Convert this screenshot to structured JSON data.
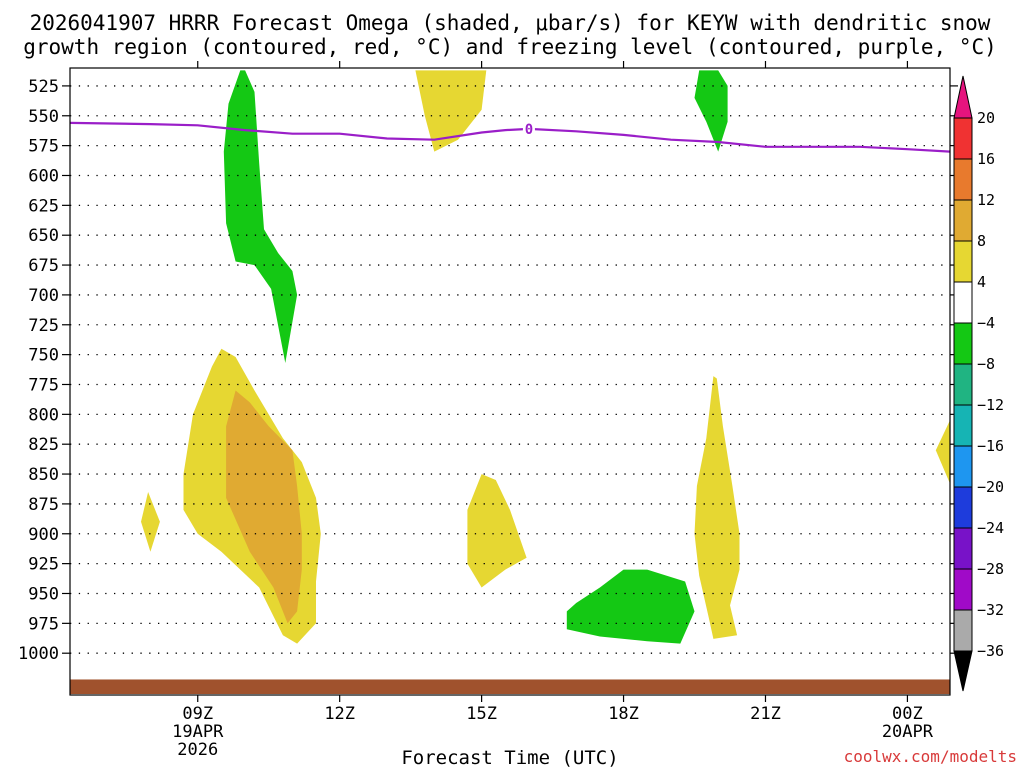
{
  "chart_data": {
    "type": "contour-timeheight",
    "title_line1": "2026041907 HRRR Forecast Omega (shaded, μbar/s) for KEYW with dendritic snow",
    "title_line2": "growth region (contoured, red, °C) and freezing level (contoured, purple, °C)",
    "xlabel": "Forecast Time (UTC)",
    "credit": "coolwx.com/modelts",
    "x_range_hours": [
      6.3,
      24.9
    ],
    "y_range_hpa": [
      510,
      1035
    ],
    "y_levels": [
      525,
      550,
      575,
      600,
      625,
      650,
      675,
      700,
      725,
      750,
      775,
      800,
      825,
      850,
      875,
      900,
      925,
      950,
      975,
      1000
    ],
    "x_ticks": [
      {
        "hour": 9,
        "label": "09Z",
        "date": "19APR",
        "year": "2026"
      },
      {
        "hour": 12,
        "label": "12Z",
        "date": "",
        "year": ""
      },
      {
        "hour": 15,
        "label": "15Z",
        "date": "",
        "year": ""
      },
      {
        "hour": 18,
        "label": "18Z",
        "date": "",
        "year": ""
      },
      {
        "hour": 21,
        "label": "21Z",
        "date": "",
        "year": ""
      },
      {
        "hour": 24,
        "label": "00Z",
        "date": "20APR",
        "year": ""
      }
    ],
    "freezing_level": {
      "label": "0",
      "label_hour": 16.0,
      "color": "#9a1ec8",
      "points": [
        [
          6.3,
          556
        ],
        [
          8.0,
          557
        ],
        [
          9.0,
          558
        ],
        [
          10.0,
          562
        ],
        [
          11.0,
          565
        ],
        [
          12.0,
          565
        ],
        [
          13.0,
          569
        ],
        [
          14.0,
          570
        ],
        [
          15.0,
          564
        ],
        [
          15.5,
          562
        ],
        [
          16.0,
          561
        ],
        [
          17.0,
          563
        ],
        [
          18.0,
          566
        ],
        [
          19.0,
          570
        ],
        [
          20.0,
          572
        ],
        [
          21.0,
          576
        ],
        [
          22.0,
          576
        ],
        [
          23.0,
          576
        ],
        [
          24.0,
          578
        ],
        [
          24.9,
          580
        ]
      ]
    },
    "terrain_hpa": 1022,
    "terrain_color": "#a0522d",
    "colorbar": {
      "labels": [
        "20",
        "16",
        "12",
        "8",
        "4",
        "−4",
        "−8",
        "−12",
        "−16",
        "−20",
        "−24",
        "−28",
        "−32",
        "−36"
      ],
      "colors": [
        "#f03232",
        "#e87a2d",
        "#e0aa32",
        "#e6d732",
        "#ffffff",
        "#14c814",
        "#20b482",
        "#16b4b4",
        "#1e96f0",
        "#1e3cdc",
        "#7812c8",
        "#a00ac8",
        "#aaaaaa"
      ],
      "top_color": "#e6147e",
      "bottom_color": "#000000"
    },
    "regions": [
      {
        "name": "yellow-region-1",
        "value": "4 to 8",
        "color": "#e6d732",
        "points": [
          [
            9.5,
            745
          ],
          [
            9.3,
            760
          ],
          [
            8.9,
            800
          ],
          [
            8.7,
            850
          ],
          [
            8.7,
            880
          ],
          [
            9.0,
            900
          ],
          [
            9.5,
            915
          ],
          [
            10.3,
            945
          ],
          [
            10.8,
            985
          ],
          [
            11.1,
            992
          ],
          [
            11.5,
            975
          ],
          [
            11.5,
            940
          ],
          [
            11.6,
            900
          ],
          [
            11.5,
            870
          ],
          [
            11.2,
            840
          ],
          [
            10.8,
            820
          ],
          [
            10.2,
            780
          ],
          [
            9.8,
            752
          ]
        ]
      },
      {
        "name": "orange-region-1",
        "value": "8 to 12",
        "color": "#e0aa32",
        "points": [
          [
            9.8,
            780
          ],
          [
            9.6,
            810
          ],
          [
            9.6,
            870
          ],
          [
            10.1,
            915
          ],
          [
            10.6,
            945
          ],
          [
            10.9,
            975
          ],
          [
            11.1,
            965
          ],
          [
            11.2,
            930
          ],
          [
            11.2,
            900
          ],
          [
            11.1,
            860
          ],
          [
            11.0,
            830
          ],
          [
            10.5,
            810
          ],
          [
            10.1,
            790
          ]
        ]
      },
      {
        "name": "green-region-1",
        "value": "-8 to -4",
        "color": "#14c814",
        "points": [
          [
            9.9,
            512
          ],
          [
            9.65,
            540
          ],
          [
            9.55,
            580
          ],
          [
            9.6,
            640
          ],
          [
            9.8,
            672
          ],
          [
            10.2,
            675
          ],
          [
            10.55,
            695
          ],
          [
            10.85,
            757
          ],
          [
            11.1,
            700
          ],
          [
            11.0,
            680
          ],
          [
            10.7,
            665
          ],
          [
            10.4,
            645
          ],
          [
            10.3,
            590
          ],
          [
            10.2,
            530
          ],
          [
            10.0,
            512
          ]
        ]
      },
      {
        "name": "yellow-region-2",
        "value": "4 to 8",
        "color": "#e6d732",
        "points": [
          [
            7.95,
            865
          ],
          [
            7.8,
            890
          ],
          [
            8.0,
            915
          ],
          [
            8.2,
            890
          ]
        ]
      },
      {
        "name": "yellow-region-3",
        "value": "4 to 8",
        "color": "#e6d732",
        "points": [
          [
            13.6,
            512
          ],
          [
            13.8,
            550
          ],
          [
            14.0,
            580
          ],
          [
            14.5,
            570
          ],
          [
            15.0,
            545
          ],
          [
            15.1,
            512
          ]
        ]
      },
      {
        "name": "yellow-region-4",
        "value": "4 to 8",
        "color": "#e6d732",
        "points": [
          [
            15.0,
            850
          ],
          [
            14.7,
            880
          ],
          [
            14.7,
            925
          ],
          [
            15.0,
            945
          ],
          [
            15.5,
            930
          ],
          [
            15.95,
            920
          ],
          [
            15.6,
            880
          ],
          [
            15.3,
            855
          ]
        ]
      },
      {
        "name": "green-region-2",
        "value": "-8 to -4",
        "color": "#14c814",
        "points": [
          [
            16.8,
            965
          ],
          [
            16.8,
            980
          ],
          [
            17.5,
            986
          ],
          [
            18.5,
            990
          ],
          [
            19.2,
            992
          ],
          [
            19.5,
            965
          ],
          [
            19.3,
            940
          ],
          [
            18.5,
            930
          ],
          [
            18.0,
            930
          ],
          [
            17.5,
            945
          ],
          [
            17.0,
            958
          ]
        ]
      },
      {
        "name": "green-region-3",
        "value": "-8 to -4",
        "color": "#14c814",
        "points": [
          [
            19.6,
            512
          ],
          [
            19.5,
            535
          ],
          [
            19.75,
            555
          ],
          [
            20.0,
            580
          ],
          [
            20.2,
            555
          ],
          [
            20.2,
            525
          ],
          [
            20.0,
            512
          ]
        ]
      },
      {
        "name": "yellow-region-5",
        "value": "4 to 8",
        "color": "#e6d732",
        "points": [
          [
            19.9,
            768
          ],
          [
            19.75,
            820
          ],
          [
            19.55,
            860
          ],
          [
            19.5,
            900
          ],
          [
            19.6,
            935
          ],
          [
            19.8,
            970
          ],
          [
            19.9,
            988
          ],
          [
            20.4,
            985
          ],
          [
            20.25,
            960
          ],
          [
            20.45,
            930
          ],
          [
            20.45,
            900
          ],
          [
            20.3,
            860
          ],
          [
            20.1,
            810
          ],
          [
            19.97,
            770
          ]
        ]
      },
      {
        "name": "yellow-region-6",
        "value": "4 to 8",
        "color": "#e6d732",
        "points": [
          [
            24.9,
            805
          ],
          [
            24.6,
            830
          ],
          [
            24.9,
            858
          ]
        ]
      }
    ]
  }
}
